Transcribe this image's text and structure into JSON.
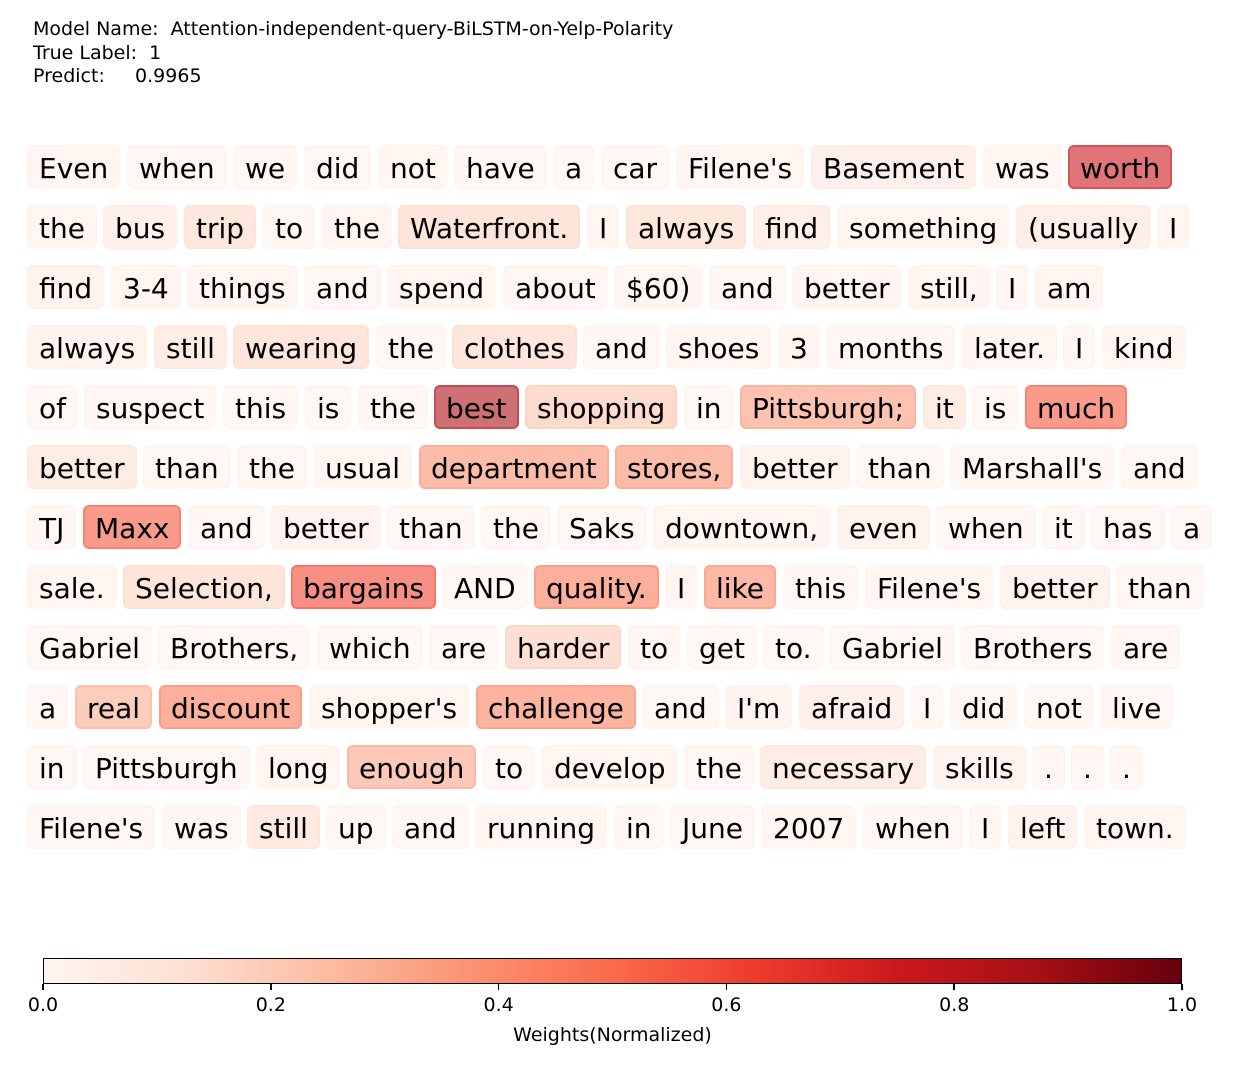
{
  "header": {
    "model_label": "Model Name:",
    "model_value": "Attention-independent-query-BiLSTM-on-Yelp-Polarity",
    "true_label_label": "True Label:",
    "true_label_value": "1",
    "predict_label": "Predict:",
    "predict_value": "0.9965"
  },
  "chart_data": {
    "type": "heatmap",
    "colormap": "Reds",
    "colorbar": {
      "label": "Weights(Normalized)",
      "range": [
        0.0,
        1.0
      ],
      "ticks": [
        "0.0",
        "0.2",
        "0.4",
        "0.6",
        "0.8",
        "1.0"
      ]
    },
    "tokens": [
      {
        "text": "Even",
        "weight": 0.03
      },
      {
        "text": "when",
        "weight": 0.02
      },
      {
        "text": "we",
        "weight": 0.02
      },
      {
        "text": "did",
        "weight": 0.02
      },
      {
        "text": "not",
        "weight": 0.03
      },
      {
        "text": "have",
        "weight": 0.02
      },
      {
        "text": "a",
        "weight": 0.02
      },
      {
        "text": "car",
        "weight": 0.02
      },
      {
        "text": "Filene's",
        "weight": 0.03
      },
      {
        "text": "Basement",
        "weight": 0.08
      },
      {
        "text": "was",
        "weight": 0.03
      },
      {
        "text": "worth",
        "weight": 0.75
      },
      {
        "text": "the",
        "weight": 0.03
      },
      {
        "text": "bus",
        "weight": 0.08
      },
      {
        "text": "trip",
        "weight": 0.15
      },
      {
        "text": "to",
        "weight": 0.02
      },
      {
        "text": "the",
        "weight": 0.03
      },
      {
        "text": "Waterfront.",
        "weight": 0.17
      },
      {
        "text": "I",
        "weight": 0.03
      },
      {
        "text": "always",
        "weight": 0.15
      },
      {
        "text": "find",
        "weight": 0.1
      },
      {
        "text": "something",
        "weight": 0.03
      },
      {
        "text": "(usually",
        "weight": 0.1
      },
      {
        "text": "I",
        "weight": 0.03
      },
      {
        "text": "find",
        "weight": 0.06
      },
      {
        "text": "3-4",
        "weight": 0.03
      },
      {
        "text": "things",
        "weight": 0.03
      },
      {
        "text": "and",
        "weight": 0.02
      },
      {
        "text": "spend",
        "weight": 0.03
      },
      {
        "text": "about",
        "weight": 0.02
      },
      {
        "text": "$60)",
        "weight": 0.03
      },
      {
        "text": "and",
        "weight": 0.02
      },
      {
        "text": "better",
        "weight": 0.03
      },
      {
        "text": "still,",
        "weight": 0.03
      },
      {
        "text": "I",
        "weight": 0.02
      },
      {
        "text": "am",
        "weight": 0.03
      },
      {
        "text": "always",
        "weight": 0.06
      },
      {
        "text": "still",
        "weight": 0.12
      },
      {
        "text": "wearing",
        "weight": 0.16
      },
      {
        "text": "the",
        "weight": 0.02
      },
      {
        "text": "clothes",
        "weight": 0.16
      },
      {
        "text": "and",
        "weight": 0.02
      },
      {
        "text": "shoes",
        "weight": 0.03
      },
      {
        "text": "3",
        "weight": 0.03
      },
      {
        "text": "months",
        "weight": 0.02
      },
      {
        "text": "later.",
        "weight": 0.03
      },
      {
        "text": "I",
        "weight": 0.02
      },
      {
        "text": "kind",
        "weight": 0.03
      },
      {
        "text": "of",
        "weight": 0.02
      },
      {
        "text": "suspect",
        "weight": 0.02
      },
      {
        "text": "this",
        "weight": 0.02
      },
      {
        "text": "is",
        "weight": 0.02
      },
      {
        "text": "the",
        "weight": 0.02
      },
      {
        "text": "best",
        "weight": 0.85
      },
      {
        "text": "shopping",
        "weight": 0.22
      },
      {
        "text": "in",
        "weight": 0.02
      },
      {
        "text": "Pittsburgh;",
        "weight": 0.35
      },
      {
        "text": "it",
        "weight": 0.12
      },
      {
        "text": "is",
        "weight": 0.02
      },
      {
        "text": "much",
        "weight": 0.55
      },
      {
        "text": "better",
        "weight": 0.12
      },
      {
        "text": "than",
        "weight": 0.02
      },
      {
        "text": "the",
        "weight": 0.02
      },
      {
        "text": "usual",
        "weight": 0.03
      },
      {
        "text": "department",
        "weight": 0.38
      },
      {
        "text": "stores,",
        "weight": 0.38
      },
      {
        "text": "better",
        "weight": 0.06
      },
      {
        "text": "than",
        "weight": 0.02
      },
      {
        "text": "Marshall's",
        "weight": 0.02
      },
      {
        "text": "and",
        "weight": 0.02
      },
      {
        "text": "TJ",
        "weight": 0.02
      },
      {
        "text": "Maxx",
        "weight": 0.55
      },
      {
        "text": "and",
        "weight": 0.02
      },
      {
        "text": "better",
        "weight": 0.05
      },
      {
        "text": "than",
        "weight": 0.02
      },
      {
        "text": "the",
        "weight": 0.02
      },
      {
        "text": "Saks",
        "weight": 0.02
      },
      {
        "text": "downtown,",
        "weight": 0.03
      },
      {
        "text": "even",
        "weight": 0.06
      },
      {
        "text": "when",
        "weight": 0.02
      },
      {
        "text": "it",
        "weight": 0.02
      },
      {
        "text": "has",
        "weight": 0.02
      },
      {
        "text": "a",
        "weight": 0.02
      },
      {
        "text": "sale.",
        "weight": 0.03
      },
      {
        "text": "Selection,",
        "weight": 0.17
      },
      {
        "text": "bargains",
        "weight": 0.6
      },
      {
        "text": "AND",
        "weight": 0.02
      },
      {
        "text": "quality.",
        "weight": 0.45
      },
      {
        "text": "I",
        "weight": 0.03
      },
      {
        "text": "like",
        "weight": 0.4
      },
      {
        "text": "this",
        "weight": 0.02
      },
      {
        "text": "Filene's",
        "weight": 0.03
      },
      {
        "text": "better",
        "weight": 0.06
      },
      {
        "text": "than",
        "weight": 0.02
      },
      {
        "text": "Gabriel",
        "weight": 0.02
      },
      {
        "text": "Brothers,",
        "weight": 0.02
      },
      {
        "text": "which",
        "weight": 0.02
      },
      {
        "text": "are",
        "weight": 0.02
      },
      {
        "text": "harder",
        "weight": 0.2
      },
      {
        "text": "to",
        "weight": 0.02
      },
      {
        "text": "get",
        "weight": 0.02
      },
      {
        "text": "to.",
        "weight": 0.02
      },
      {
        "text": "Gabriel",
        "weight": 0.02
      },
      {
        "text": "Brothers",
        "weight": 0.02
      },
      {
        "text": "are",
        "weight": 0.02
      },
      {
        "text": "a",
        "weight": 0.02
      },
      {
        "text": "real",
        "weight": 0.3
      },
      {
        "text": "discount",
        "weight": 0.45
      },
      {
        "text": "shopper's",
        "weight": 0.03
      },
      {
        "text": "challenge",
        "weight": 0.42
      },
      {
        "text": "and",
        "weight": 0.02
      },
      {
        "text": "I'm",
        "weight": 0.05
      },
      {
        "text": "afraid",
        "weight": 0.08
      },
      {
        "text": "I",
        "weight": 0.02
      },
      {
        "text": "did",
        "weight": 0.02
      },
      {
        "text": "not",
        "weight": 0.02
      },
      {
        "text": "live",
        "weight": 0.02
      },
      {
        "text": "in",
        "weight": 0.02
      },
      {
        "text": "Pittsburgh",
        "weight": 0.02
      },
      {
        "text": "long",
        "weight": 0.03
      },
      {
        "text": "enough",
        "weight": 0.32
      },
      {
        "text": "to",
        "weight": 0.02
      },
      {
        "text": "develop",
        "weight": 0.03
      },
      {
        "text": "the",
        "weight": 0.02
      },
      {
        "text": "necessary",
        "weight": 0.12
      },
      {
        "text": "skills",
        "weight": 0.05
      },
      {
        "text": ".",
        "weight": 0.02
      },
      {
        "text": ".",
        "weight": 0.02
      },
      {
        "text": ".",
        "weight": 0.02
      },
      {
        "text": "Filene's",
        "weight": 0.02
      },
      {
        "text": "was",
        "weight": 0.02
      },
      {
        "text": "still",
        "weight": 0.14
      },
      {
        "text": "up",
        "weight": 0.02
      },
      {
        "text": "and",
        "weight": 0.02
      },
      {
        "text": "running",
        "weight": 0.03
      },
      {
        "text": "in",
        "weight": 0.02
      },
      {
        "text": "June",
        "weight": 0.02
      },
      {
        "text": "2007",
        "weight": 0.03
      },
      {
        "text": "when",
        "weight": 0.02
      },
      {
        "text": "I",
        "weight": 0.02
      },
      {
        "text": "left",
        "weight": 0.06
      },
      {
        "text": "town.",
        "weight": 0.03
      }
    ]
  }
}
